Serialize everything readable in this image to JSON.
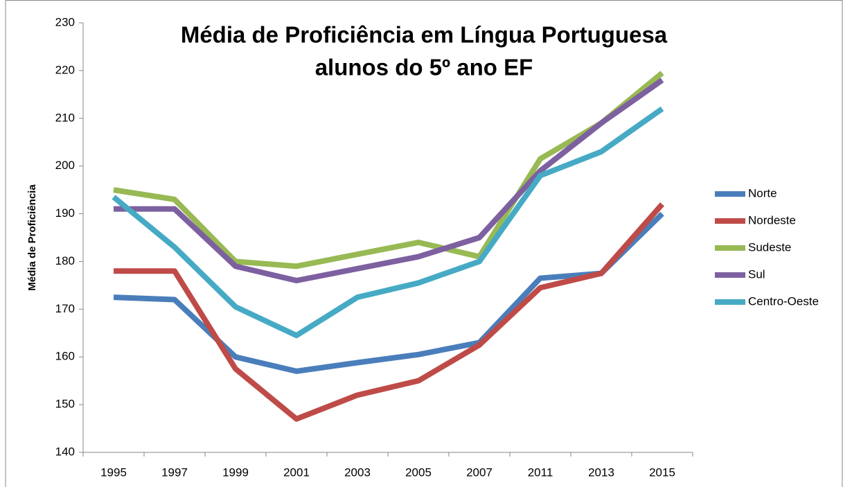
{
  "chart_data": {
    "type": "line",
    "title": [
      "Média de Proficiência em Língua Portuguesa",
      "alunos do 5º ano EF"
    ],
    "y_label": "Média de Proficiência",
    "categories": [
      "1995",
      "1997",
      "1999",
      "2001",
      "2003",
      "2005",
      "2007",
      "2011",
      "2013",
      "2015"
    ],
    "series": [
      {
        "name": "Norte",
        "color": "#4a7ebb",
        "values": [
          172.5,
          172,
          160,
          157,
          158.8,
          160.5,
          163,
          176.5,
          177.5,
          190
        ]
      },
      {
        "name": "Nordeste",
        "color": "#be4b48",
        "values": [
          178,
          178,
          157.5,
          147,
          152,
          155,
          162.5,
          174.5,
          177.5,
          192
        ]
      },
      {
        "name": "Sudeste",
        "color": "#98b954",
        "values": [
          195,
          193,
          180,
          179,
          181.5,
          184,
          181,
          201.5,
          209,
          219.5
        ]
      },
      {
        "name": "Sul",
        "color": "#7d60a0",
        "values": [
          191,
          191,
          179,
          176,
          178.5,
          181,
          185,
          199,
          209,
          218
        ]
      },
      {
        "name": "Centro-Oeste",
        "color": "#46aac5",
        "values": [
          193.5,
          183,
          170.5,
          164.5,
          172.5,
          175.5,
          180,
          198,
          203,
          212
        ]
      }
    ],
    "ylim": [
      140,
      230
    ],
    "yticks": [
      140,
      150,
      160,
      170,
      180,
      190,
      200,
      210,
      220,
      230
    ],
    "grid": false,
    "legend": "right"
  }
}
